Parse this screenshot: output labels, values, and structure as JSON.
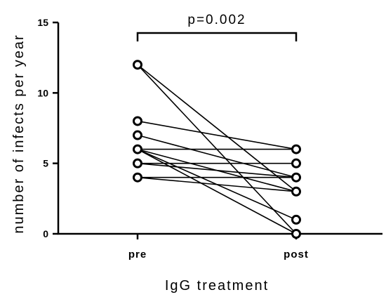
{
  "chart_data": {
    "type": "scatter",
    "subtype": "paired-lines",
    "categories": [
      "pre",
      "post"
    ],
    "xlabel": "IgG treatment",
    "ylabel": "number of infects per year",
    "ylim": [
      0,
      15
    ],
    "yticks": [
      0,
      5,
      10,
      15
    ],
    "grid": false,
    "annotation": "p=0.002",
    "pairs": [
      {
        "pre": 12,
        "post": 3
      },
      {
        "pre": 12,
        "post": 0
      },
      {
        "pre": 8,
        "post": 6
      },
      {
        "pre": 7,
        "post": 4
      },
      {
        "pre": 6,
        "post": 6
      },
      {
        "pre": 6,
        "post": 3
      },
      {
        "pre": 6,
        "post": 0
      },
      {
        "pre": 6,
        "post": 1
      },
      {
        "pre": 5,
        "post": 4
      },
      {
        "pre": 5,
        "post": 5
      },
      {
        "pre": 4,
        "post": 3
      },
      {
        "pre": 4,
        "post": 4
      }
    ],
    "color": "#000000"
  }
}
